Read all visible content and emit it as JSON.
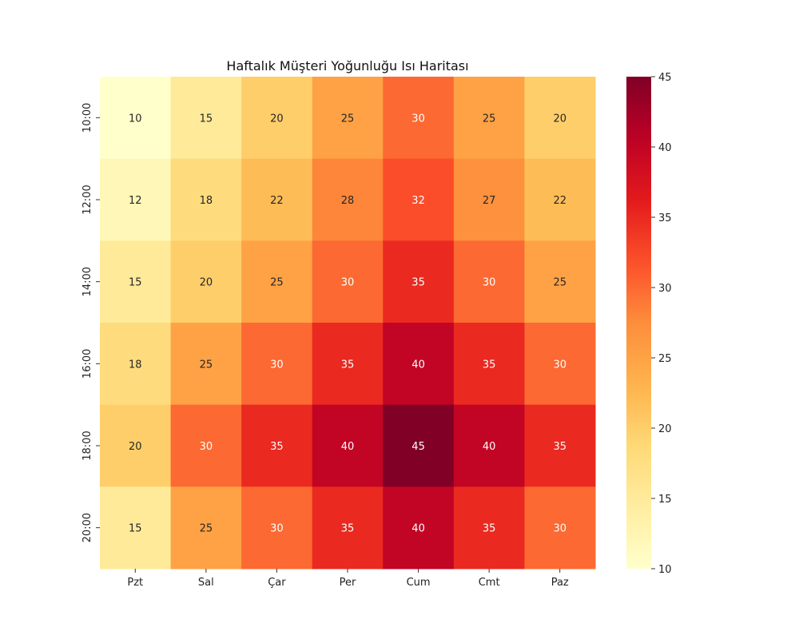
{
  "chart_data": {
    "type": "heatmap",
    "title": "Haftalık Müşteri Yoğunluğu Isı Haritası",
    "xlabel": "",
    "ylabel": "",
    "x_categories": [
      "Pzt",
      "Sal",
      "Çar",
      "Per",
      "Cum",
      "Cmt",
      "Paz"
    ],
    "y_categories": [
      "10:00",
      "12:00",
      "14:00",
      "16:00",
      "18:00",
      "20:00"
    ],
    "values": [
      [
        10,
        15,
        20,
        25,
        30,
        25,
        20
      ],
      [
        12,
        18,
        22,
        28,
        32,
        27,
        22
      ],
      [
        15,
        20,
        25,
        30,
        35,
        30,
        25
      ],
      [
        18,
        25,
        30,
        35,
        40,
        35,
        30
      ],
      [
        20,
        30,
        35,
        40,
        45,
        40,
        35
      ],
      [
        15,
        25,
        30,
        35,
        40,
        35,
        30
      ]
    ],
    "annotated": true,
    "colormap": "YlOrRd",
    "vmin": 10,
    "vmax": 45,
    "colorbar": {
      "ticks": [
        "10",
        "15",
        "20",
        "25",
        "30",
        "35",
        "40",
        "45"
      ],
      "placement": "right"
    }
  }
}
